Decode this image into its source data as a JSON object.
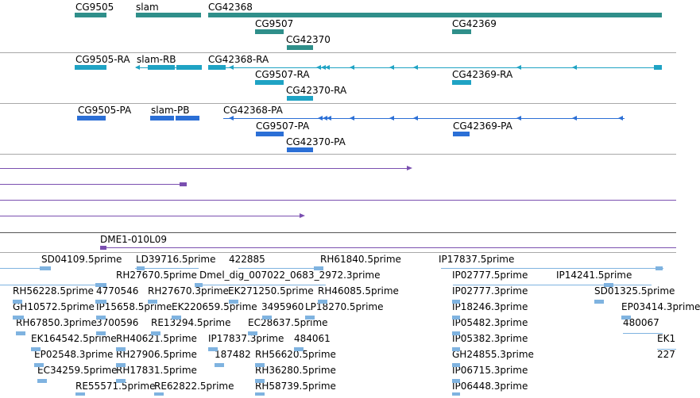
{
  "colors": {
    "gene": "#2f8f8a",
    "mrna": "#1fa3c4",
    "cds": "#2b6fd6",
    "purple": "#7a4fb0",
    "est": "#7fb3e0",
    "border": "#a8a8a8"
  },
  "tracks": {
    "gene": {
      "features": [
        {
          "name": "CG9505"
        },
        {
          "name": "slam"
        },
        {
          "name": "CG42368"
        },
        {
          "name": "CG9507"
        },
        {
          "name": "CG42370"
        },
        {
          "name": "CG42369"
        }
      ]
    },
    "mrna": {
      "features": [
        {
          "name": "CG9505-RA"
        },
        {
          "name": "slam-RB"
        },
        {
          "name": "CG42368-RA"
        },
        {
          "name": "CG9507-RA"
        },
        {
          "name": "CG42370-RA"
        },
        {
          "name": "CG42369-RA"
        }
      ]
    },
    "cds": {
      "features": [
        {
          "name": "CG9505-PA"
        },
        {
          "name": "slam-PB"
        },
        {
          "name": "CG42368-PA"
        },
        {
          "name": "CG9507-PA"
        },
        {
          "name": "CG42370-PA"
        },
        {
          "name": "CG42369-PA"
        }
      ]
    },
    "clone": {
      "features": [
        {
          "name": "DME1-010L09"
        }
      ]
    },
    "est": {
      "labels": [
        "SD04109.5prime",
        "LD39716.5prime",
        "422885",
        "RH61840.5prime",
        "IP17837.5prime",
        "RH27670.5prime",
        "Dmel_dig_007022_0683_2972.3prime",
        "IP02777.5prime",
        "IP14241.5prime",
        "RH56228.5prime",
        "4770546",
        "RH27670.3prime",
        "EK271250.5prime",
        "RH46085.5prime",
        "IP02777.3prime",
        "SD01325.5prime",
        "GH10572.5prime",
        "IP15658.5prime",
        "EK220659.5prime",
        "3495960",
        "LP18270.5prime",
        "IP18246.3prime",
        "EP03414.3prime",
        "RH67850.3prime",
        "3700596",
        "RE13294.5prime",
        "EC28637.5prime",
        "IP05482.3prime",
        "480067",
        "EK164542.5prime",
        "RH40621.5prime",
        "IP17837.3prime",
        "484061",
        "IP05382.3prime",
        "EK1",
        "EP02548.3prime",
        "RH27906.5prime",
        "187482",
        "RH56620.5prime",
        "GH24855.3prime",
        "227",
        "EC34259.5prime",
        "RH17831.5prime",
        "RH36280.5prime",
        "IP06715.3prime",
        "RE55571.5prime",
        "RE62822.5prime",
        "RH58739.5prime",
        "IP06448.3prime"
      ]
    }
  }
}
